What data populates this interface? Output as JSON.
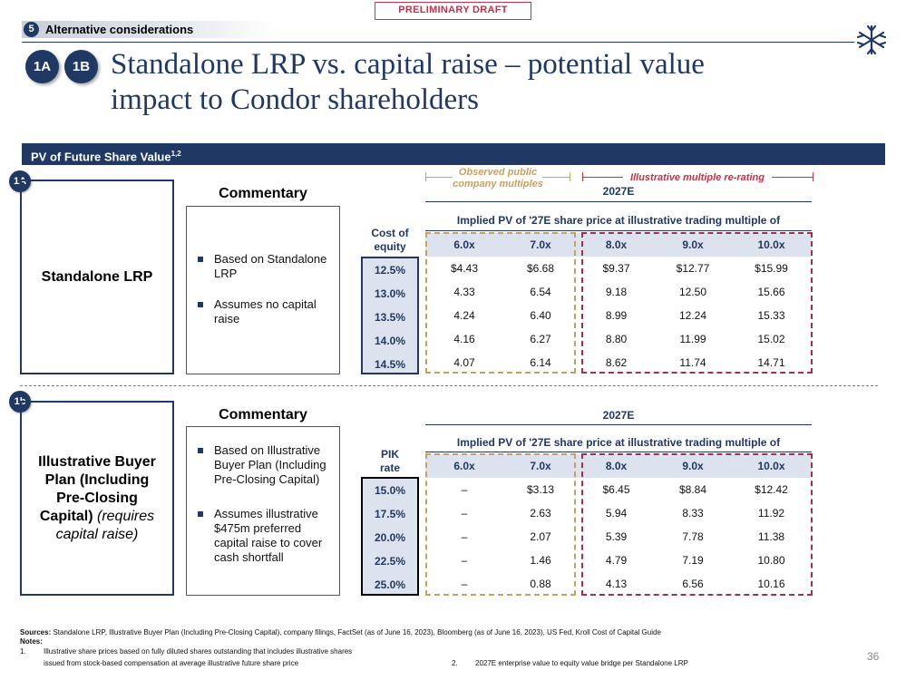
{
  "header": {
    "draft_label": "PRELIMINARY DRAFT",
    "section_number": "5",
    "section_label": "Alternative considerations",
    "badge_1": "1A",
    "badge_2": "1B",
    "title_line_1": "Standalone LRP vs. capital raise – potential value",
    "title_line_2": "impact to Condor shareholders",
    "logo_icon": "snowflake-asterisk-logo"
  },
  "band": {
    "title": "PV of Future Share Value",
    "superscript": "1,2"
  },
  "brackets": {
    "observed_line_1": "Observed public",
    "observed_line_2": "company multiples",
    "rerating": "Illustrative multiple re-rating"
  },
  "section_a": {
    "badge": "1A",
    "scenario": "Standalone LRP",
    "commentary_title": "Commentary",
    "bullets": [
      "Based on Standalone LRP",
      "Assumes no capital raise"
    ],
    "year": "2027E",
    "implied_label": "Implied PV of '27E share price at illustrative trading multiple of",
    "row_label_header_1": "Cost of",
    "row_label_header_2": "equity",
    "multiples": [
      "6.0x",
      "7.0x",
      "8.0x",
      "9.0x",
      "10.0x"
    ],
    "rows": [
      {
        "label": "12.5%",
        "values": [
          "$4.43",
          "$6.68",
          "$9.37",
          "$12.77",
          "$15.99"
        ]
      },
      {
        "label": "13.0%",
        "values": [
          "4.33",
          "6.54",
          "9.18",
          "12.50",
          "15.66"
        ]
      },
      {
        "label": "13.5%",
        "values": [
          "4.24",
          "6.40",
          "8.99",
          "12.24",
          "15.33"
        ]
      },
      {
        "label": "14.0%",
        "values": [
          "4.16",
          "6.27",
          "8.80",
          "11.99",
          "15.02"
        ]
      },
      {
        "label": "14.5%",
        "values": [
          "4.07",
          "6.14",
          "8.62",
          "11.74",
          "14.71"
        ]
      }
    ]
  },
  "section_b": {
    "badge": "1b",
    "scenario_main": "Illustrative Buyer Plan (Including Pre-Closing Capital)",
    "scenario_note": "(requires capital raise)",
    "commentary_title": "Commentary",
    "bullets": [
      "Based on Illustrative Buyer Plan (Including Pre-Closing Capital)",
      "Assumes illustrative $475m preferred capital raise to cover cash shortfall"
    ],
    "year": "2027E",
    "implied_label": "Implied PV of '27E share price at illustrative trading multiple of",
    "row_label_header_1": "PIK",
    "row_label_header_2": "rate",
    "multiples": [
      "6.0x",
      "7.0x",
      "8.0x",
      "9.0x",
      "10.0x"
    ],
    "rows": [
      {
        "label": "15.0%",
        "values": [
          "–",
          "$3.13",
          "$6.45",
          "$8.84",
          "$12.42"
        ]
      },
      {
        "label": "17.5%",
        "values": [
          "–",
          "2.63",
          "5.94",
          "8.33",
          "11.92"
        ]
      },
      {
        "label": "20.0%",
        "values": [
          "–",
          "2.07",
          "5.39",
          "7.78",
          "11.38"
        ]
      },
      {
        "label": "22.5%",
        "values": [
          "–",
          "1.46",
          "4.79",
          "7.19",
          "10.80"
        ]
      },
      {
        "label": "25.0%",
        "values": [
          "–",
          "0.88",
          "4.13",
          "6.56",
          "10.16"
        ]
      }
    ]
  },
  "footer": {
    "sources_label": "Sources:",
    "sources_text": "Standalone LRP, Illustrative Buyer Plan (Including Pre-Closing Capital), company filings, FactSet (as of June 16, 2023), Bloomberg (as of June 16, 2023), US Fed, Kroll Cost of Capital Guide",
    "notes_label": "Notes:",
    "note_1_num": "1.",
    "note_1_line_1": "Illustrative share prices based on fully diluted shares outstanding that includes illustrative shares",
    "note_1_line_2": "issued from stock-based compensation at average illustrative future share price",
    "note_2_num": "2.",
    "note_2_text": "2027E enterprise value to equity value bridge per Standalone LRP",
    "page_number": "36"
  },
  "colors": {
    "navy": "#1f3864",
    "gold": "#c8a060",
    "red": "#a03050",
    "light_blue": "#dce3ee"
  }
}
